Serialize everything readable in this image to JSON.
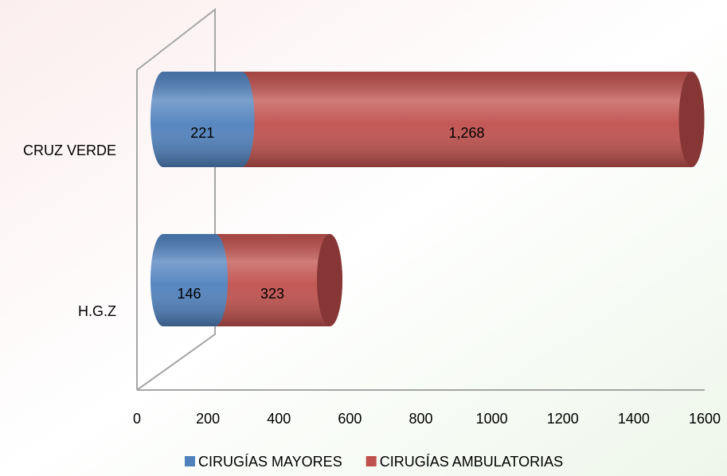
{
  "chart_data": {
    "type": "bar3d",
    "orientation": "horizontal",
    "stacked": true,
    "categories": [
      "CRUZ VERDE",
      "H.G.Z"
    ],
    "series": [
      {
        "name": "CIRUGÍAS MAYORES",
        "color": "#4f81bd",
        "values": [
          221,
          146
        ]
      },
      {
        "name": "CIRUGÍAS AMBULATORIAS",
        "color": "#c0504d",
        "values": [
          1268,
          323
        ],
        "value_labels": [
          "1,268",
          "323"
        ]
      }
    ],
    "xlim": [
      0,
      1600
    ],
    "xticks": [
      0,
      200,
      400,
      600,
      800,
      1000,
      1200,
      1400,
      1600
    ],
    "legend": "bottom"
  }
}
